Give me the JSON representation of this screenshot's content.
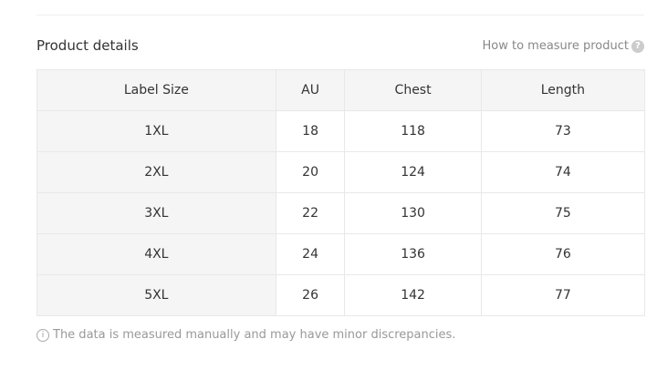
{
  "title": "Product details",
  "help_link": "How to measure product",
  "table": {
    "headers": [
      "Label Size",
      "AU",
      "Chest",
      "Length"
    ],
    "rows": [
      [
        "1XL",
        "18",
        "118",
        "73"
      ],
      [
        "2XL",
        "20",
        "124",
        "74"
      ],
      [
        "3XL",
        "22",
        "130",
        "75"
      ],
      [
        "4XL",
        "24",
        "136",
        "76"
      ],
      [
        "5XL",
        "26",
        "142",
        "77"
      ]
    ]
  },
  "note": "The data is measured manually and may have minor discrepancies."
}
